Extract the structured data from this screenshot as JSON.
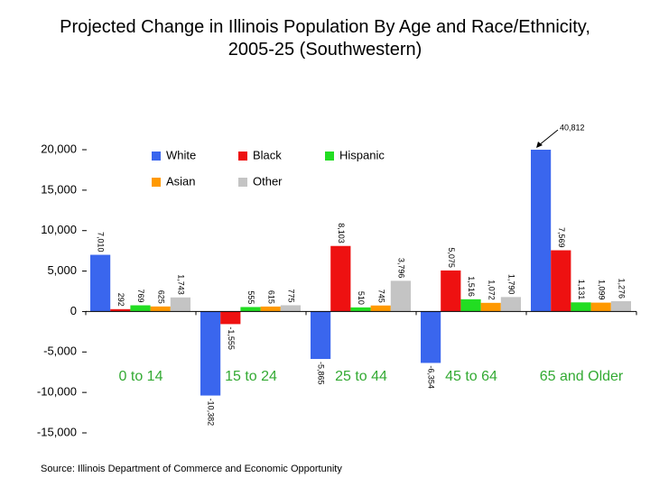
{
  "chart_data": {
    "type": "bar",
    "title": "Projected Change in Illinois Population By Age and Race/Ethnicity, 2005-25 (Southwestern)",
    "source": "Source: Illinois Department of Commerce and Economic Opportunity",
    "categories": [
      "0 to 14",
      "15 to 24",
      "25 to 44",
      "45 to 64",
      "65 and Older"
    ],
    "series": [
      {
        "name": "White",
        "color": "#3a66ee",
        "values": [
          7010,
          -10382,
          -5865,
          -6354,
          40812
        ],
        "value_labels": [
          "7,010",
          "-10,382",
          "-5,865",
          "-6,354",
          "40,812"
        ]
      },
      {
        "name": "Black",
        "color": "#ee1111",
        "values": [
          292,
          -1555,
          8103,
          5075,
          7569
        ],
        "value_labels": [
          "292",
          "-1,555",
          "8,103",
          "5,075",
          "7,569"
        ]
      },
      {
        "name": "Hispanic",
        "color": "#22dd22",
        "values": [
          769,
          555,
          510,
          1516,
          1131
        ],
        "value_labels": [
          "769",
          "555",
          "510",
          "1,516",
          "1,131"
        ]
      },
      {
        "name": "Asian",
        "color": "#ff9900",
        "values": [
          625,
          615,
          745,
          1072,
          1099
        ],
        "value_labels": [
          "625",
          "615",
          "745",
          "1,072",
          "1,099"
        ]
      },
      {
        "name": "Other",
        "color": "#c4c4c4",
        "values": [
          1743,
          775,
          3796,
          1790,
          1276
        ],
        "value_labels": [
          "1,743",
          "775",
          "3,796",
          "1,790",
          "1,276"
        ]
      }
    ],
    "ylim": [
      -15000,
      20000
    ],
    "yticks": [
      {
        "value": -15000,
        "label": "-15,000"
      },
      {
        "value": -10000,
        "label": "-10,000"
      },
      {
        "value": -5000,
        "label": "-5,000"
      },
      0,
      {
        "value": 5000,
        "label": "5,000"
      },
      {
        "value": 10000,
        "label": "10,000"
      },
      {
        "value": 15000,
        "label": "15,000"
      },
      {
        "value": 20000,
        "label": "20,000"
      }
    ]
  }
}
